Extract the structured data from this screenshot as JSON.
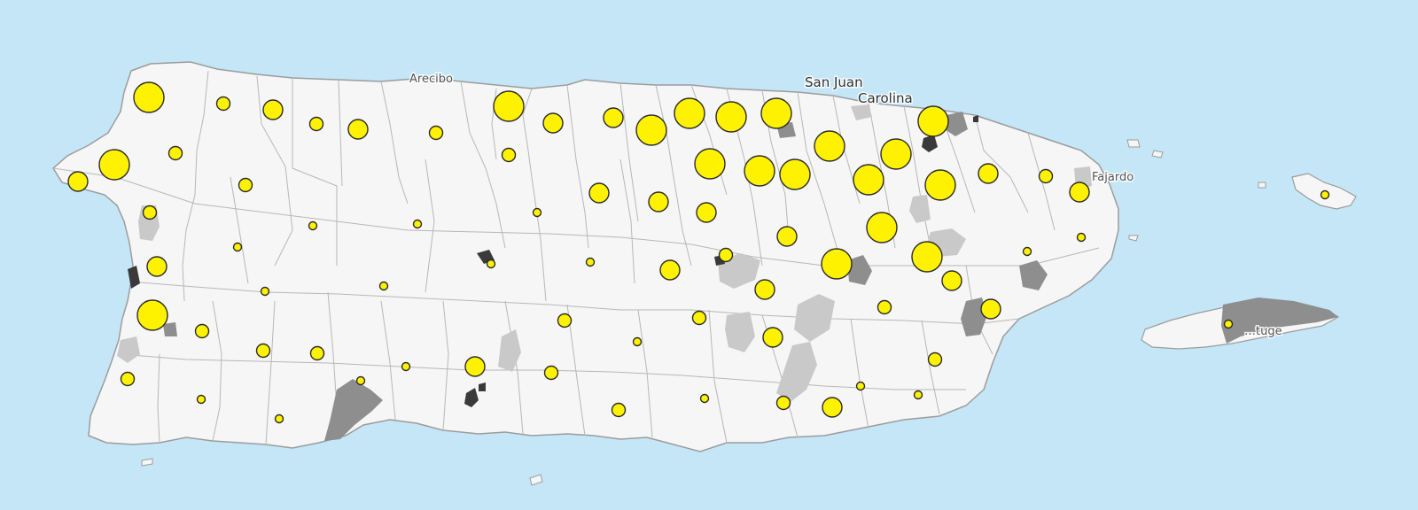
{
  "map": {
    "colors": {
      "water": "#c4e6f7",
      "land": "#f6f6f6",
      "boundary": "#b7b7b7",
      "coast": "#9c9c9c",
      "marker_fill": "#fff200",
      "marker_stroke": "#2a2a2a",
      "area_light": "#c9c9c9",
      "area_medium": "#8e8e8e",
      "area_dark": "#3a3a3a"
    },
    "icons": {
      "marker": "proportional-circle-marker"
    },
    "labels": {
      "san_juan": "San Juan",
      "carolina": "Carolina",
      "arecibo": "Arecibo",
      "fajardo": "Fajardo",
      "culebra_partial": "…tuge"
    }
  }
}
